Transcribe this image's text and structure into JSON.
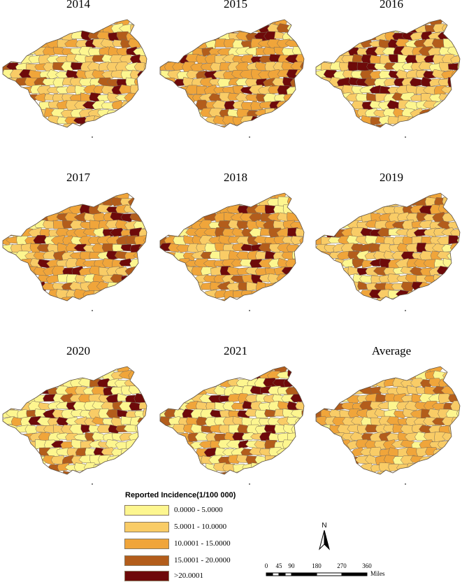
{
  "panels": [
    {
      "title": "2014"
    },
    {
      "title": "2015"
    },
    {
      "title": "2016"
    },
    {
      "title": "2017"
    },
    {
      "title": "2018"
    },
    {
      "title": "2019"
    },
    {
      "title": "2020"
    },
    {
      "title": "2021"
    },
    {
      "title": "Average"
    }
  ],
  "legend": {
    "title": "Reported Incidence(1/100 000)",
    "items": [
      {
        "label": "0.0000 - 5.0000",
        "color": "#fdf68f"
      },
      {
        "label": "5.0001 - 10.0000",
        "color": "#f9cc66"
      },
      {
        "label": "10.0001 - 15.0000",
        "color": "#f0a53a"
      },
      {
        "label": "15.0001 - 20.0000",
        "color": "#b35d1b"
      },
      {
        "label": ">20.0001",
        "color": "#6e0a0a"
      }
    ]
  },
  "north_arrow": {
    "label": "N"
  },
  "scale_bar": {
    "ticks": [
      "0",
      "45",
      "90",
      "180",
      "270",
      "360"
    ],
    "tick_values": [
      0,
      45,
      90,
      180,
      270,
      360
    ],
    "unit": "Miles"
  },
  "map_data": {
    "panel_colors": [
      {
        "base": "#f9cc66",
        "mix": [
          "#fdf68f",
          "#fdf68f",
          "#f9cc66",
          "#f0a53a",
          "#f0a53a",
          "#b35d1b",
          "#6e0a0a"
        ]
      },
      {
        "base": "#f0a53a",
        "mix": [
          "#fdf68f",
          "#f9cc66",
          "#f9cc66",
          "#f0a53a",
          "#f0a53a",
          "#b35d1b",
          "#6e0a0a"
        ]
      },
      {
        "base": "#f9cc66",
        "mix": [
          "#fdf68f",
          "#fdf68f",
          "#f9cc66",
          "#f0a53a",
          "#b35d1b",
          "#6e0a0a",
          "#6e0a0a"
        ]
      },
      {
        "base": "#f0a53a",
        "mix": [
          "#fdf68f",
          "#f9cc66",
          "#f9cc66",
          "#f0a53a",
          "#f0a53a",
          "#b35d1b",
          "#6e0a0a"
        ]
      },
      {
        "base": "#f0a53a",
        "mix": [
          "#fdf68f",
          "#f9cc66",
          "#f9cc66",
          "#f0a53a",
          "#f0a53a",
          "#b35d1b",
          "#6e0a0a"
        ]
      },
      {
        "base": "#f9cc66",
        "mix": [
          "#fdf68f",
          "#f9cc66",
          "#f9cc66",
          "#f0a53a",
          "#f0a53a",
          "#b35d1b",
          "#6e0a0a"
        ]
      },
      {
        "base": "#fdf68f",
        "mix": [
          "#fdf68f",
          "#fdf68f",
          "#f9cc66",
          "#f9cc66",
          "#f0a53a",
          "#b35d1b",
          "#6e0a0a"
        ]
      },
      {
        "base": "#fdf68f",
        "mix": [
          "#fdf68f",
          "#fdf68f",
          "#f9cc66",
          "#f9cc66",
          "#f0a53a",
          "#b35d1b",
          "#6e0a0a"
        ]
      },
      {
        "base": "#f9cc66",
        "mix": [
          "#fdf68f",
          "#f9cc66",
          "#f9cc66",
          "#f0a53a",
          "#f0a53a",
          "#f0a53a",
          "#b35d1b"
        ]
      }
    ]
  }
}
